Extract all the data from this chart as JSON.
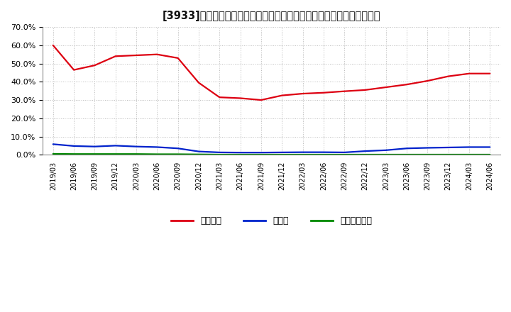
{
  "title": "[3933]　自己資本、のれん、繰延税金資産の総資産に対する比率の推移",
  "x_labels": [
    "2019/03",
    "2019/06",
    "2019/09",
    "2019/12",
    "2020/03",
    "2020/06",
    "2020/09",
    "2020/12",
    "2021/03",
    "2021/06",
    "2021/09",
    "2021/12",
    "2022/03",
    "2022/06",
    "2022/09",
    "2022/12",
    "2023/03",
    "2023/06",
    "2023/09",
    "2023/12",
    "2024/03",
    "2024/06"
  ],
  "equity": [
    0.6,
    0.465,
    0.49,
    0.54,
    0.545,
    0.55,
    0.53,
    0.395,
    0.315,
    0.31,
    0.3,
    0.325,
    0.335,
    0.34,
    0.348,
    0.355,
    0.37,
    0.385,
    0.405,
    0.43,
    0.445,
    0.445
  ],
  "noren": [
    0.058,
    0.048,
    0.045,
    0.05,
    0.045,
    0.042,
    0.035,
    0.018,
    0.013,
    0.012,
    0.012,
    0.013,
    0.014,
    0.014,
    0.013,
    0.02,
    0.025,
    0.035,
    0.038,
    0.04,
    0.042,
    0.042
  ],
  "deferred_tax": [
    0.005,
    0.004,
    0.004,
    0.004,
    0.004,
    0.003,
    0.003,
    0.002,
    0.001,
    0.001,
    0.001,
    0.001,
    0.001,
    0.001,
    0.001,
    0.001,
    0.001,
    0.001,
    0.001,
    0.001,
    0.001,
    0.001
  ],
  "equity_color": "#dd0011",
  "noren_color": "#0022cc",
  "deferred_color": "#008800",
  "bg_color": "#ffffff",
  "plot_bg_color": "#ffffff",
  "grid_color": "#bbbbbb",
  "ylim": [
    0.0,
    0.7
  ],
  "yticks": [
    0.0,
    0.1,
    0.2,
    0.3,
    0.4,
    0.5,
    0.6,
    0.7
  ],
  "legend_equity": "自己資本",
  "legend_noren": "のれん",
  "legend_deferred": "繰延税金資産"
}
